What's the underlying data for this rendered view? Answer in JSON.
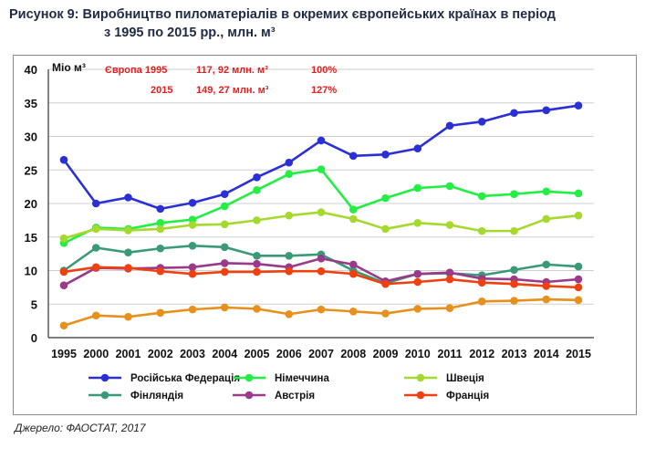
{
  "title_line1": "Рисунок 9: Виробництво пиломатеріалів в окремих європейських країнах в період",
  "title_line2": "з 1995 по 2015 рр., млн. м³",
  "source": "Джерело: ФАОСТАТ, 2017",
  "annotation": {
    "row1": [
      "Європа 1995",
      "117, 92 млн. м³",
      "100%"
    ],
    "row2": [
      "2015",
      "149, 27 млн. м³",
      "127%"
    ],
    "color": "#e02020"
  },
  "chart_data": {
    "type": "line",
    "ylabel": "Міо м³",
    "xlabel": "",
    "ylim": [
      0,
      40
    ],
    "yticks": [
      0,
      5,
      10,
      15,
      20,
      25,
      30,
      35,
      40
    ],
    "grid": true,
    "legend_position": "bottom",
    "x": [
      "1995",
      "2000",
      "2001",
      "2002",
      "2003",
      "2004",
      "2005",
      "2006",
      "2007",
      "2008",
      "2009",
      "2010",
      "2011",
      "2012",
      "2013",
      "2014",
      "2015"
    ],
    "series": [
      {
        "name": "Російська Федерація",
        "color": "#2b2fd6",
        "values": [
          26.5,
          20.0,
          20.9,
          19.2,
          20.1,
          21.4,
          23.9,
          26.1,
          29.4,
          27.1,
          27.3,
          28.2,
          31.6,
          32.2,
          33.5,
          33.9,
          34.6
        ]
      },
      {
        "name": "Німеччина",
        "color": "#22ee44",
        "values": [
          14.1,
          16.4,
          16.2,
          17.1,
          17.6,
          19.6,
          22.0,
          24.4,
          25.1,
          19.1,
          20.8,
          22.3,
          22.6,
          21.1,
          21.4,
          21.8,
          21.5
        ]
      },
      {
        "name": "Швеція",
        "color": "#a6d92e",
        "values": [
          14.8,
          16.2,
          16.0,
          16.2,
          16.8,
          16.9,
          17.5,
          18.2,
          18.7,
          17.7,
          16.2,
          17.1,
          16.8,
          15.9,
          15.9,
          17.7,
          18.2
        ]
      },
      {
        "name": "Фінляндія",
        "color": "#3a9a78",
        "values": [
          10.0,
          13.4,
          12.7,
          13.3,
          13.7,
          13.5,
          12.2,
          12.2,
          12.4,
          10.0,
          8.1,
          9.5,
          9.6,
          9.3,
          10.1,
          10.9,
          10.6
        ]
      },
      {
        "name": "Австрія",
        "color": "#9a3a8a",
        "values": [
          7.8,
          10.4,
          10.3,
          10.4,
          10.5,
          11.1,
          11.0,
          10.5,
          11.8,
          10.9,
          8.4,
          9.5,
          9.7,
          8.8,
          8.7,
          8.3,
          8.7
        ]
      },
      {
        "name": "Франція",
        "color": "#f04010",
        "values": [
          9.8,
          10.5,
          10.4,
          9.9,
          9.5,
          9.8,
          9.8,
          9.9,
          9.9,
          9.5,
          8.0,
          8.3,
          8.7,
          8.2,
          8.0,
          7.7,
          7.5
        ]
      },
      {
        "name": "",
        "color": "#e8901c",
        "values": [
          1.8,
          3.3,
          3.1,
          3.7,
          4.2,
          4.5,
          4.3,
          3.5,
          4.2,
          3.9,
          3.6,
          4.3,
          4.4,
          5.4,
          5.5,
          5.7,
          5.6
        ]
      }
    ]
  }
}
